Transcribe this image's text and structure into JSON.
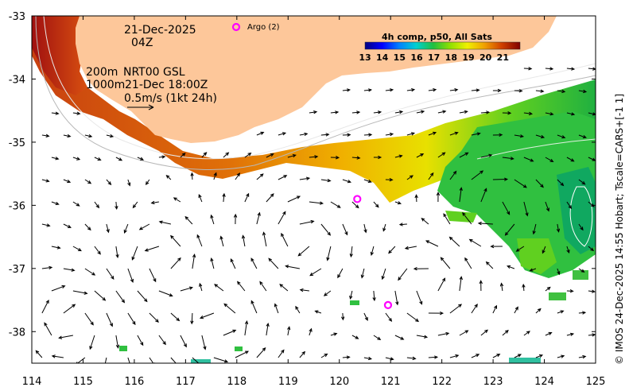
{
  "map": {
    "date": "21-Dec-2025",
    "hour": "04Z",
    "iso_200": "200m",
    "iso_1000": "1000m",
    "product": "NRT00 GSL",
    "product_time": "21-Dec 18:00Z",
    "scale_label": "0.5m/s (1kt 24h)",
    "argo_label": "Argo (2)",
    "credit": "© IMOS 24-Dec-2025 14:55 Hobart; Tscale=CARS+[-1 1]",
    "lon_ticks": [
      "114",
      "115",
      "116",
      "117",
      "118",
      "119",
      "120",
      "121",
      "122",
      "123",
      "124",
      "125"
    ],
    "lat_ticks": [
      "-33",
      "-34",
      "-35",
      "-36",
      "-37",
      "-38"
    ],
    "lon_range": [
      114,
      125
    ],
    "lat_range": [
      -38.5,
      -33
    ],
    "argo_floats": [
      {
        "lon": 120.35,
        "lat": -35.9
      },
      {
        "lon": 120.95,
        "lat": -37.58
      }
    ],
    "colors": {
      "land": "#fdc79a",
      "argo": "#ff00ff"
    }
  },
  "colorbar": {
    "title": "4h comp, p50, All Sats",
    "ticks": [
      "13",
      "14",
      "15",
      "16",
      "17",
      "18",
      "19",
      "20",
      "21"
    ],
    "range": [
      13,
      22
    ],
    "colors": [
      "#00007f",
      "#0000ff",
      "#007fff",
      "#00ffff",
      "#19c840",
      "#7fff00",
      "#ffff00",
      "#ff7f00",
      "#b22200",
      "#7f0000"
    ]
  }
}
